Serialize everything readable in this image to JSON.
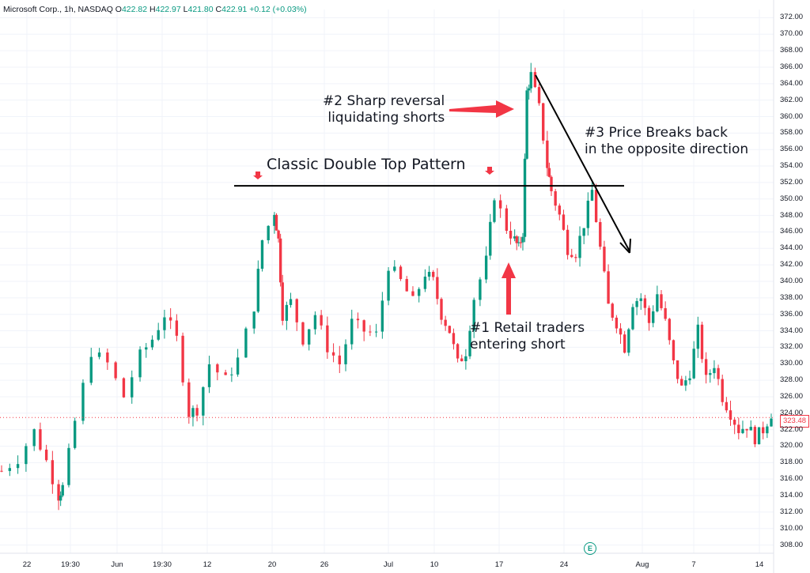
{
  "header": {
    "symbol": "Microsoft Corp., 1h, NASDAQ",
    "o_label": "O",
    "o": "422.82",
    "h_label": "H",
    "h": "422.97",
    "l_label": "L",
    "l": "421.80",
    "c_label": "C",
    "c": "422.91",
    "change": "+0.12 (+0.03%)"
  },
  "annotations": {
    "title": "Classic Double Top Pattern",
    "note2_line1": "#2 Sharp reversal",
    "note2_line2": "liquidating shorts",
    "note3_line1": "#3 Price Breaks back",
    "note3_line2": "in the opposite direction",
    "note1_line1": "#1 Retail traders",
    "note1_line2": "entering short"
  },
  "current_price_label": "323.48",
  "earnings_badge": "E",
  "colors": {
    "up": "#089981",
    "down": "#f23645",
    "annotation_arrow": "#f23645",
    "line": "#000000"
  },
  "chart_data": {
    "type": "candlestick",
    "title": "",
    "xlabel": "",
    "ylabel": "",
    "ylim": [
      307,
      373
    ],
    "y_ticks": [
      "372.00",
      "370.00",
      "368.00",
      "366.00",
      "364.00",
      "362.00",
      "360.00",
      "358.00",
      "356.00",
      "354.00",
      "352.00",
      "350.00",
      "348.00",
      "346.00",
      "344.00",
      "342.00",
      "340.00",
      "338.00",
      "336.00",
      "334.00",
      "332.00",
      "330.00",
      "328.00",
      "326.00",
      "324.00",
      "322.00",
      "320.00",
      "318.00",
      "316.00",
      "314.00",
      "312.00",
      "310.00",
      "308.00"
    ],
    "x_ticks": [
      "22",
      "19:30",
      "Jun",
      "19:30",
      "12",
      "20",
      "26",
      "Jul",
      "10",
      "17",
      "24",
      "Aug",
      "7",
      "14"
    ],
    "grid": true,
    "resistance_level": 351.6,
    "double_top_points": [
      351.5,
      351.2
    ],
    "current_price": 323.48,
    "approx_close_path": [
      [
        0,
        317.0
      ],
      [
        4,
        318.5
      ],
      [
        8,
        321.8
      ],
      [
        11,
        318.2
      ],
      [
        14,
        314.0
      ],
      [
        15,
        315.0
      ],
      [
        18,
        323.0
      ],
      [
        22,
        331.5
      ],
      [
        26,
        330.0
      ],
      [
        30,
        326.0
      ],
      [
        34,
        331.0
      ],
      [
        37,
        333.0
      ],
      [
        40,
        336.0
      ],
      [
        43,
        333.0
      ],
      [
        46,
        324.0
      ],
      [
        48,
        324.5
      ],
      [
        51,
        330.0
      ],
      [
        55,
        328.0
      ],
      [
        58,
        330.5
      ],
      [
        62,
        337.0
      ],
      [
        64,
        345.0
      ],
      [
        67,
        348.5
      ],
      [
        68,
        345.0
      ],
      [
        69,
        336.0
      ],
      [
        71,
        337.5
      ],
      [
        74,
        333.0
      ],
      [
        77,
        336.0
      ],
      [
        80,
        332.0
      ],
      [
        83,
        330.0
      ],
      [
        86,
        335.0
      ],
      [
        89,
        334.0
      ],
      [
        92,
        333.5
      ],
      [
        95,
        342.0
      ],
      [
        98,
        340.0
      ],
      [
        101,
        337.5
      ],
      [
        104,
        341.0
      ],
      [
        106,
        340.0
      ],
      [
        108,
        336.0
      ],
      [
        110,
        334.0
      ],
      [
        112,
        330.0
      ],
      [
        114,
        331.5
      ],
      [
        116,
        338.0
      ],
      [
        119,
        342.5
      ],
      [
        121,
        350.5
      ],
      [
        124,
        346.5
      ],
      [
        126,
        345.0
      ],
      [
        127,
        344.0
      ],
      [
        128,
        346.0
      ],
      [
        129,
        363.0
      ],
      [
        130,
        365.0
      ],
      [
        132,
        361.0
      ],
      [
        134,
        354.0
      ],
      [
        135,
        351.0
      ],
      [
        137,
        348.0
      ],
      [
        139,
        344.0
      ],
      [
        141,
        343.5
      ],
      [
        143,
        347.0
      ],
      [
        145,
        351.0
      ],
      [
        147,
        344.0
      ],
      [
        149,
        337.0
      ],
      [
        151,
        335.0
      ],
      [
        153,
        332.0
      ],
      [
        155,
        337.5
      ],
      [
        157,
        338.0
      ],
      [
        159,
        335.0
      ],
      [
        161,
        338.5
      ],
      [
        163,
        335.0
      ],
      [
        165,
        330.0
      ],
      [
        167,
        327.0
      ],
      [
        169,
        329.0
      ],
      [
        171,
        334.0
      ],
      [
        173,
        328.0
      ],
      [
        175,
        330.0
      ],
      [
        177,
        326.0
      ],
      [
        179,
        324.0
      ],
      [
        181,
        322.0
      ],
      [
        183,
        322.5
      ],
      [
        185,
        321.0
      ],
      [
        187,
        322.0
      ],
      [
        189,
        324.0
      ]
    ]
  }
}
